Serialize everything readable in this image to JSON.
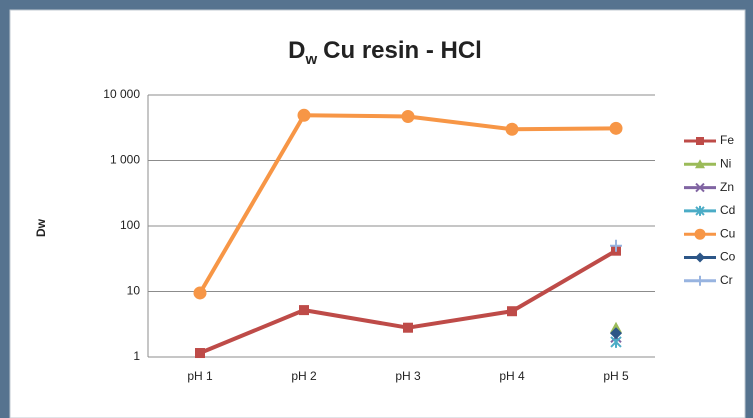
{
  "chart_data": {
    "type": "line",
    "title": {
      "text": "D",
      "subscript": "w",
      "rest": "Cu resin - HCl"
    },
    "y_label": "Dw",
    "categories": [
      "pH 1",
      "pH 2",
      "pH 3",
      "pH 4",
      "pH 5"
    ],
    "log_y": true,
    "grid": true,
    "legend": "right",
    "ylim": [
      1,
      10000
    ],
    "yticks": [
      1,
      10,
      100,
      {
        "value": 1000,
        "label": "1 000"
      },
      {
        "value": 10000,
        "label": "10 000"
      }
    ],
    "series": [
      {
        "name": "Fe",
        "color": "#be4b48",
        "marker": "square",
        "values": [
          1.15,
          5.2,
          2.8,
          5,
          42
        ]
      },
      {
        "name": "Ni",
        "color": "#9bbb59",
        "marker": "triangle",
        "values": [
          null,
          null,
          null,
          null,
          2.8
        ]
      },
      {
        "name": "Zn",
        "color": "#8064a2",
        "marker": "x",
        "values": [
          null,
          null,
          null,
          null,
          2.0
        ]
      },
      {
        "name": "Cd",
        "color": "#4bacc6",
        "marker": "star",
        "values": [
          null,
          null,
          null,
          null,
          1.7
        ]
      },
      {
        "name": "Cu",
        "color": "#f79646",
        "marker": "circle",
        "values": [
          9.5,
          4900,
          4700,
          3000,
          3100
        ]
      },
      {
        "name": "Co",
        "color": "#2c5687",
        "marker": "diamond",
        "values": [
          null,
          null,
          null,
          null,
          2.3
        ]
      },
      {
        "name": "Cr",
        "color": "#98b4e0",
        "marker": "plus",
        "values": [
          null,
          null,
          null,
          null,
          50
        ]
      }
    ]
  }
}
